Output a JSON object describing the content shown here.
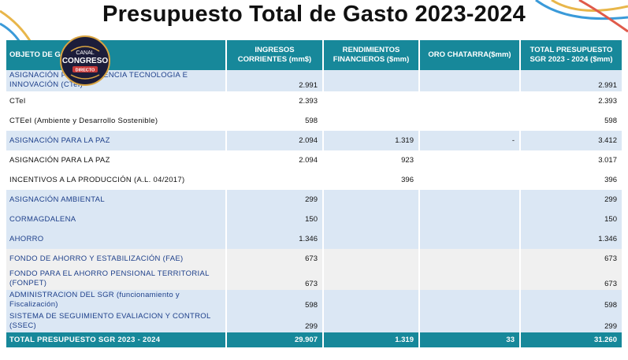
{
  "title": "Presupuesto Total de Gasto 2023-2024",
  "logo": {
    "line1": "CANAL",
    "line2": "CONGRESO",
    "line3": "DIRECTO"
  },
  "headers": [
    "OBJETO DE GASTO",
    "INGRESOS CORRIENTES (mm$)",
    "RENDIMIENTOS FINANCIEROS ($mm)",
    "ORO CHATARRA($mm)",
    "TOTAL PRESUPUESTO SGR 2023 - 2024 ($mm)"
  ],
  "rows": [
    {
      "label": "ASIGNACIÓN PARA LA CIENCIA TECNOLOGIA E INNOVACIÓN (CTeI)",
      "ingresos": "2.991",
      "rendimientos": "",
      "oro": "",
      "total": "2.991"
    },
    {
      "label": "CTeI",
      "ingresos": "2.393",
      "rendimientos": "",
      "oro": "",
      "total": "2.393"
    },
    {
      "label": "CTEeI (Ambiente y Desarrollo Sostenible)",
      "ingresos": "598",
      "rendimientos": "",
      "oro": "",
      "total": "598"
    },
    {
      "label": "ASIGNACIÓN PARA LA PAZ",
      "ingresos": "2.094",
      "rendimientos": "1.319",
      "oro": "-",
      "total": "3.412"
    },
    {
      "label": "ASIGNACIÓN PARA LA PAZ",
      "ingresos": "2.094",
      "rendimientos": "923",
      "oro": "",
      "total": "3.017"
    },
    {
      "label": "INCENTIVOS A LA PRODUCCIÓN (A.L. 04/2017)",
      "ingresos": "",
      "rendimientos": "396",
      "oro": "",
      "total": "396"
    },
    {
      "label": "ASIGNACIÓN AMBIENTAL",
      "ingresos": "299",
      "rendimientos": "",
      "oro": "",
      "total": "299"
    },
    {
      "label": "CORMAGDALENA",
      "ingresos": "150",
      "rendimientos": "",
      "oro": "",
      "total": "150"
    },
    {
      "label": "AHORRO",
      "ingresos": "1.346",
      "rendimientos": "",
      "oro": "",
      "total": "1.346"
    },
    {
      "label": "FONDO DE AHORRO Y ESTABILIZACIÓN (FAE)",
      "ingresos": "673",
      "rendimientos": "",
      "oro": "",
      "total": "673"
    },
    {
      "label": "FONDO PARA EL AHORRO PENSIONAL TERRITORIAL (FONPET)",
      "ingresos": "673",
      "rendimientos": "",
      "oro": "",
      "total": "673"
    },
    {
      "label": "ADMINISTRACION DEL SGR (funcionamiento y Fiscalización)",
      "ingresos": "598",
      "rendimientos": "",
      "oro": "",
      "total": "598"
    },
    {
      "label": "SISTEMA DE SEGUIMIENTO EVALIACION Y CONTROL (SSEC)",
      "ingresos": "299",
      "rendimientos": "",
      "oro": "",
      "total": "299"
    }
  ],
  "total_row": {
    "label": "TOTAL PRESUPUESTO SGR 2023 - 2024",
    "ingresos": "29.907",
    "rendimientos": "1.319",
    "oro": "33",
    "total": "31.260"
  },
  "colors": {
    "header": "#17889a",
    "blue_row": "#dbe7f4",
    "grey_row": "#f0f0f0",
    "blue_text": "#1d3f8a"
  }
}
